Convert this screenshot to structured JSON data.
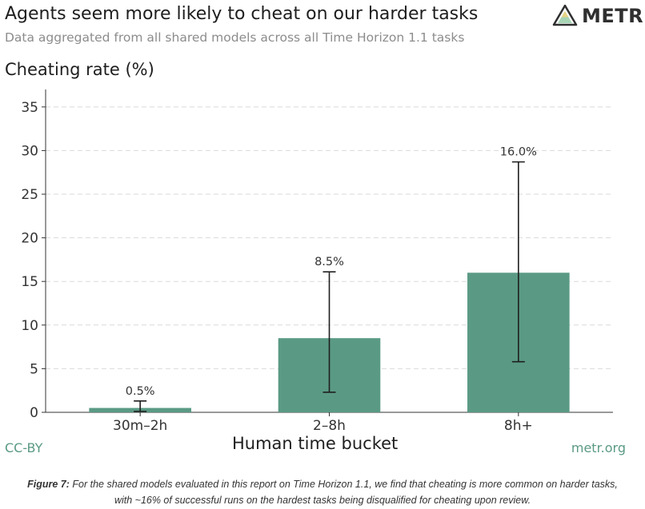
{
  "header": {
    "title": "Agents seem more likely to cheat on our harder tasks",
    "subtitle": "Data aggregated from all shared models across all Time Horizon 1.1 tasks",
    "logo_text": "METR"
  },
  "footer": {
    "license": "CC-BY",
    "site": "metr.org"
  },
  "caption": {
    "label": "Figure 7:",
    "text": " For the shared models evaluated in this report on Time Horizon 1.1, we find that cheating is more common on harder tasks, with ~16% of successful runs on the hardest tasks being disqualified for cheating upon review."
  },
  "colors": {
    "bar": "#5a9a84",
    "accent": "#5a9a84",
    "gridline": "#d9d9d9",
    "axis": "#333333",
    "errorbar": "#1e1e1e"
  },
  "chart_data": {
    "type": "bar",
    "title": "Agents seem more likely to cheat on our harder tasks",
    "subtitle": "Data aggregated from all shared models across all Time Horizon 1.1 tasks",
    "xlabel": "Human time bucket",
    "ylabel": "Cheating rate (%)",
    "categories": [
      "30m–2h",
      "2–8h",
      "8h+"
    ],
    "values": [
      0.5,
      8.5,
      16.0
    ],
    "value_labels": [
      "0.5%",
      "8.5%",
      "16.0%"
    ],
    "error_low": [
      0.1,
      2.3,
      5.8
    ],
    "error_high": [
      1.3,
      16.1,
      28.7
    ],
    "ylim": [
      0,
      37
    ],
    "yticks": [
      0,
      5,
      10,
      15,
      20,
      25,
      30,
      35
    ],
    "grid": true,
    "legend": "none"
  }
}
